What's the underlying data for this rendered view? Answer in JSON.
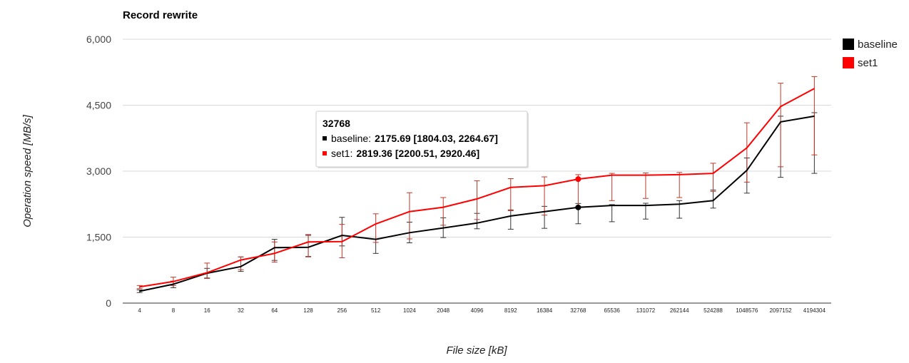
{
  "chart_data": {
    "type": "line",
    "title": "Record rewrite",
    "xlabel": "File size [kB]",
    "ylabel": "Operation speed [MB/s]",
    "ylim": [
      0,
      6000
    ],
    "yticks": [
      0,
      1500,
      3000,
      4500,
      6000
    ],
    "ytick_labels": [
      "0",
      "1,500",
      "3,000",
      "4,500",
      "6,000"
    ],
    "grid": true,
    "legend_position": "right",
    "categories": [
      "4",
      "8",
      "16",
      "32",
      "64",
      "128",
      "256",
      "512",
      "1024",
      "2048",
      "4096",
      "8192",
      "16384",
      "32768",
      "65536",
      "131072",
      "262144",
      "524288",
      "1048576",
      "2097152",
      "4194304"
    ],
    "series": [
      {
        "name": "baseline",
        "color": "#000000",
        "values": [
          270,
          430,
          680,
          830,
          1260,
          1270,
          1540,
          1450,
          1600,
          1710,
          1820,
          1980,
          2080,
          2175.69,
          2220,
          2220,
          2250,
          2330,
          3020,
          4120,
          4250
        ],
        "low": [
          240,
          350,
          570,
          720,
          970,
          1060,
          1300,
          1130,
          1370,
          1490,
          1690,
          1680,
          1700,
          1804.03,
          1850,
          1910,
          1930,
          2160,
          2500,
          2860,
          2950
        ],
        "high": [
          300,
          500,
          790,
          1050,
          1450,
          1540,
          1950,
          1450,
          1840,
          1940,
          2040,
          2120,
          2200,
          2264.67,
          2240,
          2270,
          2330,
          2570,
          3300,
          4250,
          4330
        ]
      },
      {
        "name": "set1",
        "color": "#ff0000",
        "values": [
          370,
          490,
          690,
          980,
          1130,
          1390,
          1400,
          1800,
          2080,
          2180,
          2370,
          2630,
          2670,
          2819.36,
          2910,
          2910,
          2920,
          2950,
          3530,
          4470,
          4880
        ],
        "low": [
          330,
          400,
          560,
          760,
          930,
          1050,
          1030,
          1380,
          1460,
          1770,
          1900,
          2100,
          2000,
          2200.51,
          2330,
          2380,
          2400,
          2540,
          2750,
          3100,
          3370
        ],
        "high": [
          400,
          590,
          910,
          1050,
          1390,
          1560,
          1790,
          2030,
          2510,
          2400,
          2780,
          2830,
          2870,
          2920.46,
          2950,
          2960,
          2970,
          3180,
          4100,
          5000,
          5150
        ]
      }
    ],
    "tooltip": {
      "title": "32768",
      "rows": [
        {
          "series": "baseline",
          "color": "#000000",
          "label": "baseline:",
          "value": "2175.69 [1804.03, 2264.67]"
        },
        {
          "series": "set1",
          "color": "#ff0000",
          "label": "set1:",
          "value": "2819.36 [2200.51, 2920.46]"
        }
      ]
    }
  }
}
